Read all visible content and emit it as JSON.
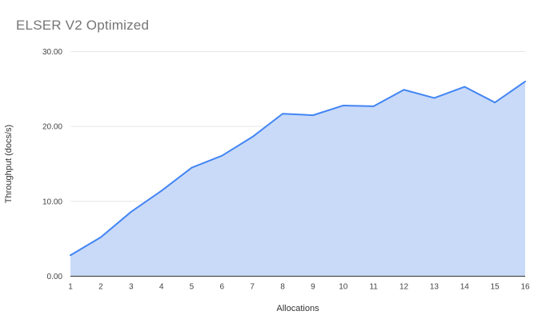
{
  "chart_data": {
    "type": "area",
    "title": "ELSER V2 Optimized",
    "xlabel": "Allocations",
    "ylabel": "Throughput (docs/s)",
    "categories": [
      1,
      2,
      3,
      4,
      5,
      6,
      7,
      8,
      9,
      10,
      11,
      12,
      13,
      14,
      15,
      16
    ],
    "series": [
      {
        "name": "Throughput",
        "values": [
          2.8,
          5.2,
          8.6,
          11.4,
          14.5,
          16.1,
          18.6,
          21.7,
          21.5,
          22.8,
          22.7,
          24.9,
          23.8,
          25.3,
          23.2,
          26.0
        ]
      }
    ],
    "ylim": [
      0,
      30
    ],
    "yticks": [
      0,
      10,
      20,
      30
    ],
    "ytick_labels": [
      "0.00",
      "10.00",
      "20.00",
      "30.00"
    ],
    "grid": "horizontal",
    "legend_position": "none",
    "colors": {
      "line": "#4285f4",
      "fill": "#c9daf8",
      "gridline": "#e6e6e6",
      "baseline": "#333333",
      "tick_text": "#444444",
      "axis_title_text": "#333333",
      "title_text": "#757575",
      "background": "#ffffff"
    }
  }
}
